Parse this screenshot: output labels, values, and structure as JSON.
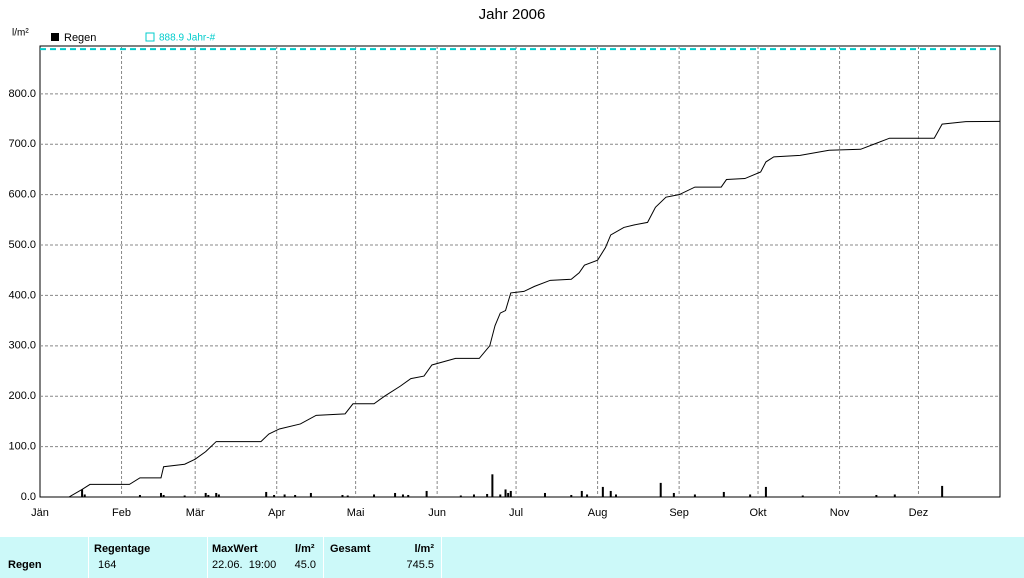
{
  "chart_data": {
    "type": "bar",
    "title": "Jahr 2006",
    "y_label": "l/m²",
    "xlim": [
      0,
      365
    ],
    "ylim": [
      0,
      895
    ],
    "xticks": [
      {
        "value": 0,
        "label": "Jän"
      },
      {
        "value": 31,
        "label": "Feb"
      },
      {
        "value": 59,
        "label": "Mär"
      },
      {
        "value": 90,
        "label": "Apr"
      },
      {
        "value": 120,
        "label": "Mai"
      },
      {
        "value": 151,
        "label": "Jun"
      },
      {
        "value": 181,
        "label": "Jul"
      },
      {
        "value": 212,
        "label": "Aug"
      },
      {
        "value": 243,
        "label": "Sep"
      },
      {
        "value": 273,
        "label": "Okt"
      },
      {
        "value": 304,
        "label": "Nov"
      },
      {
        "value": 334,
        "label": "Dez"
      }
    ],
    "yticks": [
      {
        "value": 0,
        "label": "0.0"
      },
      {
        "value": 100,
        "label": "100.0"
      },
      {
        "value": 200,
        "label": "200.0"
      },
      {
        "value": 300,
        "label": "300.0"
      },
      {
        "value": 400,
        "label": "400.0"
      },
      {
        "value": 500,
        "label": "500.0"
      },
      {
        "value": 600,
        "label": "600.0"
      },
      {
        "value": 700,
        "label": "700.0"
      },
      {
        "value": 800,
        "label": "800.0"
      }
    ],
    "grid": true,
    "series": [
      {
        "name": "Regen",
        "color": "#000000",
        "x": [
          16,
          17,
          38,
          46,
          47,
          55,
          63,
          64,
          67,
          68,
          86,
          89,
          93,
          97,
          103,
          115,
          117,
          127,
          135,
          138,
          140,
          147,
          160,
          165,
          170,
          172,
          175,
          177,
          178,
          179,
          192,
          202,
          206,
          208,
          214,
          217,
          219,
          236,
          241,
          249,
          260,
          270,
          276,
          290,
          318,
          325,
          343
        ],
        "values": [
          15,
          5,
          4,
          8,
          4,
          3,
          8,
          4,
          8,
          5,
          10,
          4,
          5,
          4,
          8,
          4,
          3,
          5,
          8,
          5,
          4,
          12,
          3,
          5,
          6,
          45,
          5,
          15,
          8,
          12,
          8,
          4,
          12,
          5,
          20,
          12,
          5,
          28,
          8,
          5,
          10,
          5,
          20,
          3,
          4,
          5,
          22
        ]
      }
    ],
    "cumulative": {
      "color": "#000000",
      "x": [
        0,
        11,
        16,
        19,
        23,
        34,
        38,
        46,
        47,
        55,
        59,
        63,
        67,
        84,
        87,
        91,
        99,
        105,
        116,
        119,
        127,
        131,
        137,
        141,
        146,
        149,
        158,
        167,
        171,
        173,
        175,
        177,
        179,
        184,
        188,
        194,
        202,
        205,
        207,
        212,
        215,
        217,
        222,
        226,
        231,
        234,
        238,
        243,
        249,
        259,
        261,
        268,
        274,
        276,
        279,
        289,
        300,
        312,
        317,
        323,
        340,
        343,
        352,
        365
      ],
      "values": [
        0,
        0,
        15,
        25,
        25,
        25,
        38,
        38,
        60,
        65,
        75,
        90,
        110,
        110,
        125,
        135,
        145,
        162,
        165,
        185,
        185,
        200,
        220,
        235,
        240,
        262,
        275,
        275,
        300,
        340,
        365,
        370,
        405,
        408,
        418,
        430,
        432,
        445,
        460,
        470,
        495,
        520,
        535,
        540,
        545,
        575,
        595,
        600,
        615,
        615,
        630,
        632,
        645,
        665,
        675,
        678,
        688,
        690,
        700,
        712,
        712,
        740,
        745,
        745.5
      ]
    },
    "reference": {
      "name": "888.9 Jahr-#",
      "value": 888.9,
      "color": "#00cccc"
    }
  },
  "table": {
    "headers": [
      "Regentage",
      "MaxWert",
      "l/m²",
      "Gesamt",
      "l/m²"
    ],
    "row": [
      "Regen",
      "164",
      "22.06.  19:00",
      "45.0",
      "745.5"
    ]
  }
}
